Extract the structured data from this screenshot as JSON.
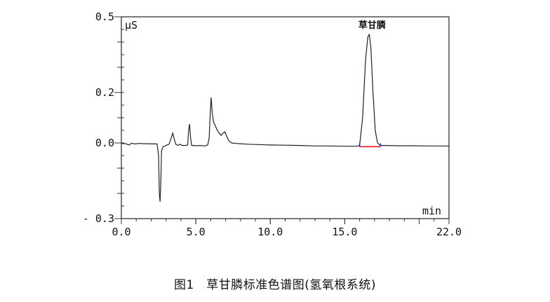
{
  "chart_data": {
    "type": "line",
    "xlim": [
      0.0,
      22.0
    ],
    "ylim": [
      -0.3,
      0.5
    ],
    "x_tick_labels": [
      "0.0",
      "5.0",
      "10.0",
      "15.0",
      "22.0"
    ],
    "x_ticks": [
      0,
      5,
      10,
      15,
      22
    ],
    "y_tick_labels": [
      "0.5",
      "0.2",
      "0.0",
      "- 0.3"
    ],
    "y_ticks": [
      0.5,
      0.2,
      0.0,
      -0.3
    ],
    "xlabel": "min",
    "ylabel": "μS",
    "grid": false,
    "line_color": "#222222",
    "series": [
      {
        "x": [
          0.0,
          0.3,
          0.5,
          0.7,
          0.9,
          1.2,
          1.5,
          1.8,
          2.1,
          2.4,
          2.5,
          2.55,
          2.6,
          2.65,
          2.7,
          2.8,
          2.9,
          3.0,
          3.2,
          3.35,
          3.45,
          3.55,
          3.65,
          3.8,
          3.95,
          4.1,
          4.3,
          4.45,
          4.52,
          4.58,
          4.65,
          4.72,
          4.85,
          5.0,
          5.3,
          5.6,
          5.8,
          5.9,
          5.97,
          6.03,
          6.1,
          6.2,
          6.3,
          6.4,
          6.55,
          6.7,
          6.85,
          6.95,
          7.05,
          7.2,
          7.4,
          7.7,
          8.0,
          8.5,
          9.0,
          10.0,
          11.0,
          12.0,
          13.0,
          14.0,
          15.0,
          15.8,
          16.0,
          16.2,
          16.4,
          16.55,
          16.65,
          16.75,
          16.9,
          17.05,
          17.2,
          17.35,
          17.5,
          17.8,
          18.5,
          19.5,
          20.5,
          21.5,
          22.0
        ],
        "y": [
          -0.002,
          -0.003,
          -0.008,
          -0.001,
          -0.004,
          -0.002,
          -0.003,
          -0.003,
          -0.004,
          -0.004,
          -0.05,
          -0.2,
          -0.233,
          -0.15,
          -0.03,
          -0.015,
          -0.013,
          -0.01,
          -0.005,
          0.02,
          0.039,
          0.015,
          -0.005,
          -0.01,
          -0.005,
          -0.01,
          -0.01,
          -0.008,
          0.05,
          0.075,
          0.02,
          -0.01,
          -0.01,
          -0.011,
          -0.01,
          -0.012,
          -0.008,
          0.02,
          0.12,
          0.18,
          0.12,
          0.08,
          0.07,
          0.055,
          0.04,
          0.03,
          0.04,
          0.044,
          0.03,
          0.01,
          0.0,
          -0.002,
          -0.003,
          -0.005,
          -0.006,
          -0.008,
          -0.009,
          -0.01,
          -0.012,
          -0.012,
          -0.013,
          -0.013,
          -0.01,
          0.1,
          0.33,
          0.42,
          0.43,
          0.38,
          0.2,
          0.05,
          0.0,
          -0.008,
          -0.01,
          -0.01,
          -0.011,
          -0.011,
          -0.012,
          -0.012,
          -0.012
        ]
      }
    ],
    "annotations": [
      {
        "text": "草甘膦",
        "x": 16.65,
        "y": 0.43
      }
    ],
    "integration_baseline": {
      "x_start": 16.0,
      "x_end": 17.4,
      "y": -0.015,
      "color": "#ff0000",
      "marker_color": "#0000ff"
    }
  },
  "caption": "图1　草甘膦标准色谱图(氢氧根系统)"
}
